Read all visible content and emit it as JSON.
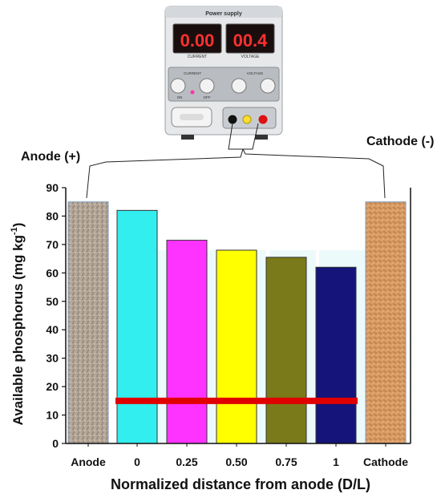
{
  "power_supply": {
    "title": "Power supply",
    "current_display": "0.00",
    "current_label": "CURRENT",
    "voltage_display": "00.4",
    "voltage_label": "VOLTAGE",
    "knob_group_left": "CURRENT",
    "knob_group_right": "VOLTAGE",
    "switch_on_label": "ON",
    "switch_off_label": "OFF",
    "colors": {
      "body": "#e6e8ea",
      "display_bg": "#1a0d0d",
      "digits": "#ff3030",
      "panel": "#b9bdc1"
    }
  },
  "electrode_labels": {
    "anode": "Anode (+)",
    "cathode": "Cathode (-)"
  },
  "chart_data": {
    "type": "bar",
    "ylabel": "Available phosphorus (mg kg",
    "ylabel_superscript": "-1",
    "ylabel_close": ")",
    "xlabel": "Normalized distance from anode (D/L)",
    "ylim": [
      0,
      90
    ],
    "yticks": [
      "0",
      "10",
      "20",
      "30",
      "40",
      "50",
      "60",
      "70",
      "80",
      "90"
    ],
    "categories": [
      "Anode",
      "0",
      "0.25",
      "0.50",
      "0.75",
      "1",
      "Cathode"
    ],
    "values": [
      85,
      82,
      71.5,
      68,
      65.5,
      62,
      85
    ],
    "colors": [
      "#b8a89a",
      "#33eeee",
      "#ff33ff",
      "#ffff00",
      "#7a7a1a",
      "#14147a",
      "#d9a070"
    ],
    "reference_line": {
      "value": 15,
      "color": "#e00000"
    },
    "grid": false,
    "legend": "none"
  }
}
